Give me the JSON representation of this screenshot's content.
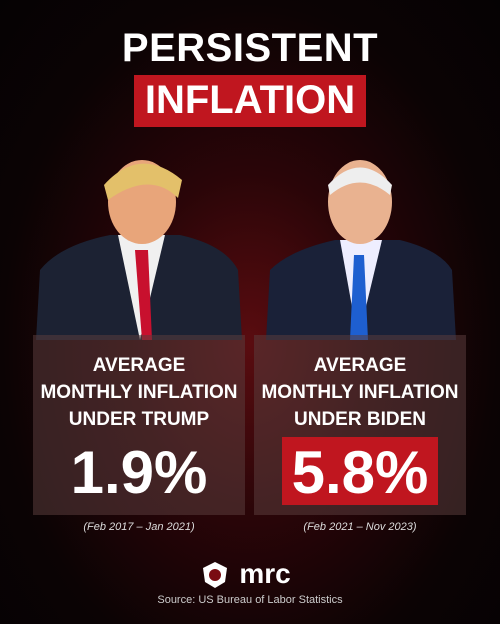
{
  "header": {
    "title_line1": "PERSISTENT",
    "title_line2": "INFLATION"
  },
  "panels": [
    {
      "label_lines": [
        "AVERAGE",
        "MONTHLY INFLATION",
        "UNDER TRUMP"
      ],
      "value": "1.9%",
      "period": "(Feb 2017 – Jan 2021)"
    },
    {
      "label_lines": [
        "AVERAGE",
        "MONTHLY INFLATION",
        "UNDER BIDEN"
      ],
      "value": "5.8%",
      "period": "(Feb 2021 – Nov 2023)"
    }
  ],
  "footer": {
    "logo": "mrc",
    "source": "Source: US Bureau of Labor Statistics"
  }
}
